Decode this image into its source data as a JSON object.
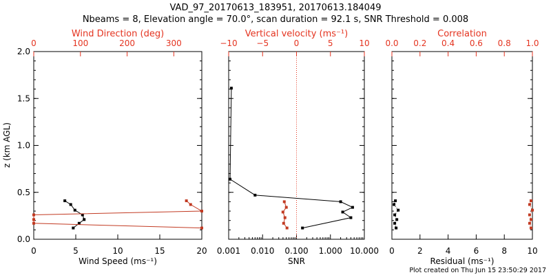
{
  "colors": {
    "axis": "#000000",
    "secondary": "#e4331f",
    "series_primary": "#000000",
    "series_secondary": "#c23a22"
  },
  "header": {
    "title_line1": "VAD_97_20170613_183951, 20170613.184049",
    "title_line2": "Nbeams = 8, Elevation angle = 70.0°, scan duration = 92.1 s, SNR Threshold = 0.008"
  },
  "footer": {
    "created": "Plot created on Thu Jun 15 23:50:29 2017"
  },
  "y_axis": {
    "label": "z (km AGL)",
    "ylim": [
      0,
      2
    ],
    "ticks": [
      0,
      0.5,
      1,
      1.5,
      2
    ],
    "tick_labels": [
      "0.0",
      "0.5",
      "1.0",
      "1.5",
      "2.0"
    ]
  },
  "chart_data": [
    {
      "type": "line",
      "panel": "wind",
      "bottom_axis": {
        "label": "Wind Speed (ms⁻¹)",
        "xlim": [
          0,
          20
        ],
        "ticks": [
          0,
          5,
          10,
          15,
          20
        ],
        "tick_labels": [
          "0",
          "5",
          "10",
          "15",
          "20"
        ]
      },
      "top_axis": {
        "label": "Wind Direction (deg)",
        "xlim": [
          0,
          360
        ],
        "ticks": [
          0,
          100,
          200,
          300
        ],
        "tick_labels": [
          "0",
          "100",
          "200",
          "300"
        ]
      },
      "series": [
        {
          "name": "Wind Speed",
          "axis": "bottom",
          "points": [
            [
              3.7,
              0.41
            ],
            [
              4.4,
              0.37
            ],
            [
              4.9,
              0.31
            ],
            [
              5.8,
              0.26
            ],
            [
              6.0,
              0.21
            ],
            [
              5.4,
              0.17
            ],
            [
              4.7,
              0.12
            ]
          ]
        },
        {
          "name": "Wind Direction",
          "axis": "top",
          "points": [
            [
              327,
              0.41
            ],
            [
              336,
              0.37
            ],
            [
              360,
              0.3
            ],
            [
              0,
              0.26
            ],
            [
              0,
              0.21
            ],
            [
              0,
              0.17
            ],
            [
              360,
              0.12
            ]
          ]
        }
      ]
    },
    {
      "type": "line",
      "panel": "snr",
      "bottom_axis": {
        "label": "SNR",
        "scale": "log",
        "xlim": [
          0.001,
          10
        ],
        "ticks": [
          0.001,
          0.01,
          0.1,
          1,
          10
        ],
        "tick_labels": [
          "0.001",
          "0.010",
          "0.100",
          "1.000",
          "10.000"
        ]
      },
      "top_axis": {
        "label": "Vertical velocity (ms⁻¹)",
        "xlim": [
          -10,
          10
        ],
        "ticks": [
          -10,
          -5,
          0,
          5,
          10
        ],
        "tick_labels": [
          "−10",
          "−5",
          "0",
          "5",
          "10"
        ]
      },
      "series": [
        {
          "name": "SNR",
          "axis": "bottom",
          "points": [
            [
              0.0012,
              1.61
            ],
            [
              0.0011,
              0.64
            ],
            [
              0.006,
              0.47
            ],
            [
              2.0,
              0.4
            ],
            [
              4.5,
              0.34
            ],
            [
              2.3,
              0.29
            ],
            [
              4.0,
              0.23
            ],
            [
              0.15,
              0.12
            ]
          ]
        },
        {
          "name": "Vertical velocity",
          "axis": "top",
          "points": [
            [
              -1.8,
              0.4
            ],
            [
              -1.5,
              0.34
            ],
            [
              -2.0,
              0.29
            ],
            [
              -1.7,
              0.23
            ],
            [
              -1.9,
              0.17
            ],
            [
              -1.4,
              0.12
            ]
          ]
        }
      ],
      "reference_line": {
        "axis": "top",
        "value": 0,
        "style": "dotted"
      }
    },
    {
      "type": "scatter",
      "panel": "residual",
      "bottom_axis": {
        "label": "Residual (ms⁻¹)",
        "xlim": [
          0,
          10
        ],
        "ticks": [
          0,
          2,
          4,
          6,
          8,
          10
        ],
        "tick_labels": [
          "0",
          "2",
          "4",
          "6",
          "8",
          "10"
        ]
      },
      "top_axis": {
        "label": "Correlation",
        "xlim": [
          0,
          1
        ],
        "ticks": [
          0,
          0.2,
          0.4,
          0.6,
          0.8,
          1
        ],
        "tick_labels": [
          "0.0",
          "0.2",
          "0.4",
          "0.6",
          "0.8",
          "1.0"
        ]
      },
      "series": [
        {
          "name": "Residual",
          "axis": "bottom",
          "points": [
            [
              0.25,
              0.41
            ],
            [
              0.15,
              0.37
            ],
            [
              0.45,
              0.31
            ],
            [
              0.2,
              0.26
            ],
            [
              0.35,
              0.21
            ],
            [
              0.2,
              0.17
            ],
            [
              0.3,
              0.12
            ]
          ]
        },
        {
          "name": "Correlation",
          "axis": "top",
          "points": [
            [
              0.99,
              0.41
            ],
            [
              0.98,
              0.37
            ],
            [
              1.0,
              0.31
            ],
            [
              0.98,
              0.26
            ],
            [
              0.99,
              0.21
            ],
            [
              0.98,
              0.17
            ],
            [
              0.99,
              0.12
            ]
          ]
        }
      ]
    }
  ]
}
